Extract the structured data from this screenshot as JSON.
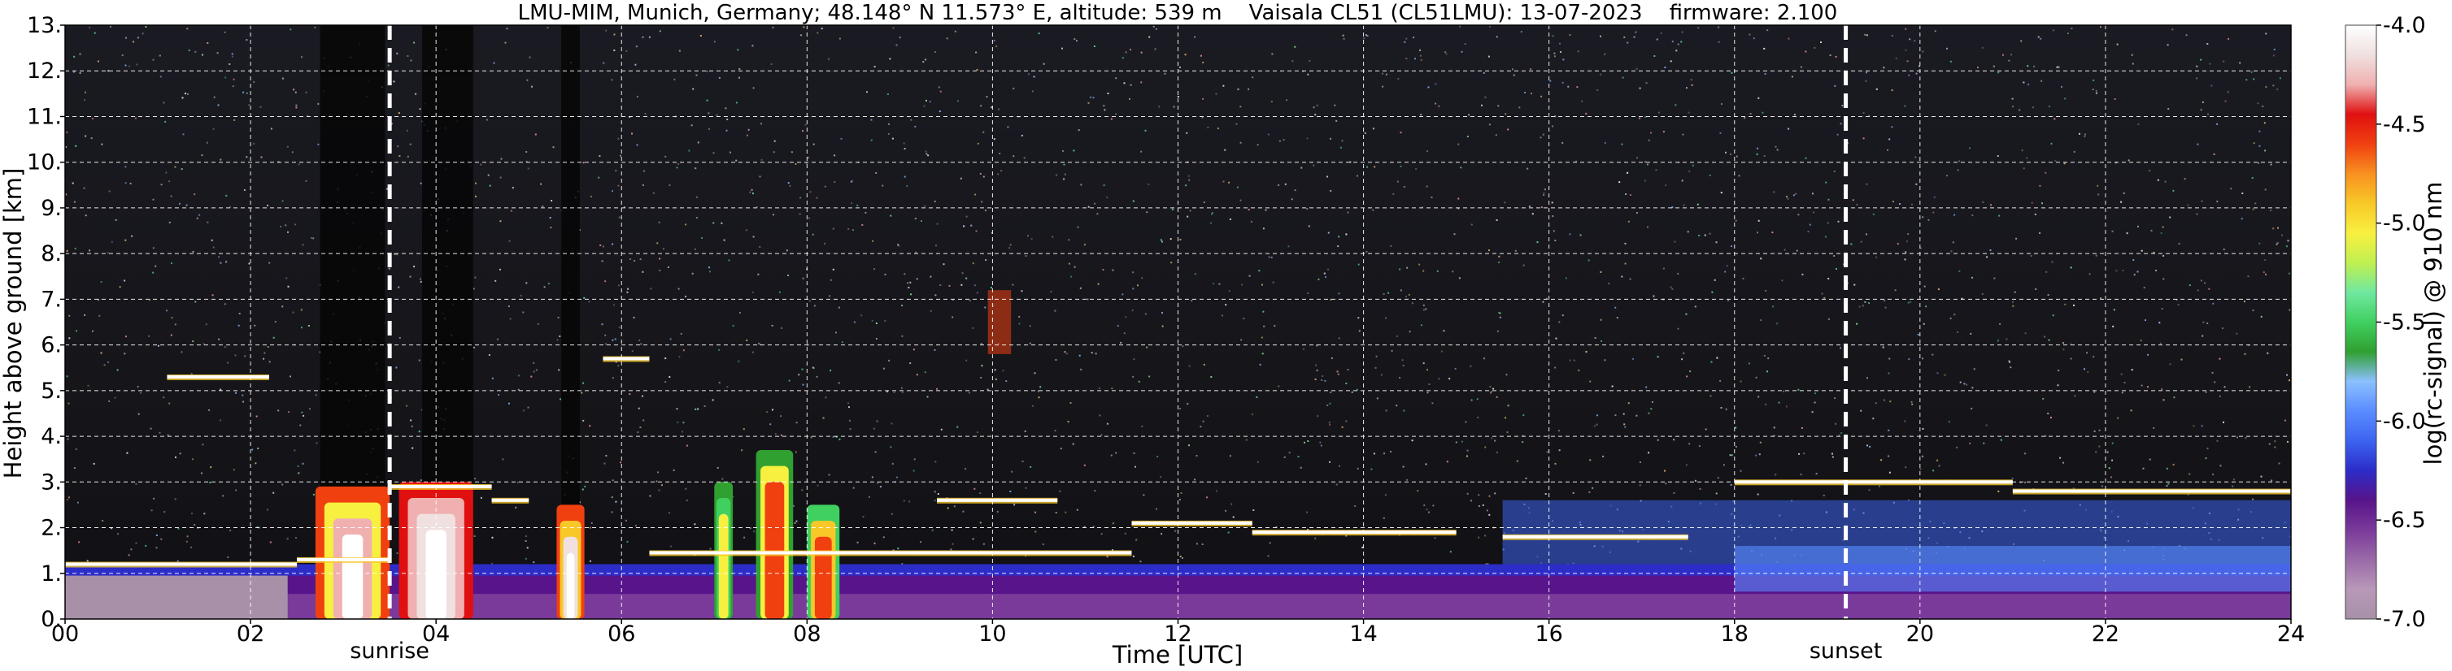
{
  "chart_data": {
    "type": "heatmap",
    "title": "LMU-MIM, Munich, Germany; 48.148° N 11.573° E, altitude: 539 m    Vaisala CL51 (CL51LMU): 13-07-2023    firmware: 2.100",
    "xlabel": "Time [UTC]",
    "ylabel": "Height above ground [km]",
    "xlim": [
      0,
      24
    ],
    "ylim": [
      0,
      13
    ],
    "x_ticks": [
      "00",
      "02",
      "04",
      "06",
      "08",
      "10",
      "12",
      "14",
      "16",
      "18",
      "20",
      "22",
      "24"
    ],
    "y_ticks": [
      "0.",
      "1.",
      "2.",
      "3.",
      "4.",
      "5.",
      "6.",
      "7.",
      "8.",
      "9.",
      "10.",
      "11.",
      "12.",
      "13."
    ],
    "grid": true,
    "colorbar": {
      "label": "log(rc-signal) @ 910 nm",
      "range": [
        -7.0,
        -4.0
      ],
      "ticks": [
        "-4.0",
        "-4.5",
        "-5.0",
        "-5.5",
        "-6.0",
        "-6.5",
        "-7.0"
      ],
      "colors": [
        "#a890a8",
        "#b898b8",
        "#9a6aa8",
        "#7a3a9a",
        "#58148a",
        "#2c2cc8",
        "#3c64f0",
        "#5a8cff",
        "#8cc0ff",
        "#30a030",
        "#40d060",
        "#70e8a0",
        "#c0f050",
        "#f8f040",
        "#f8c828",
        "#f89020",
        "#f04010",
        "#e01010",
        "#f0b0b0",
        "#f0e0e0",
        "#ffffff"
      ]
    },
    "events": [
      {
        "label": "sunrise",
        "time": 3.5
      },
      {
        "label": "sunset",
        "time": 19.2
      }
    ],
    "cloud_layers": [
      {
        "t0": 0.0,
        "t1": 2.5,
        "height": 1.2
      },
      {
        "t0": 1.1,
        "t1": 2.2,
        "height": 5.3
      },
      {
        "t0": 2.5,
        "t1": 3.5,
        "height": 1.3
      },
      {
        "t0": 3.5,
        "t1": 4.6,
        "height": 2.9
      },
      {
        "t0": 4.6,
        "t1": 5.0,
        "height": 2.6
      },
      {
        "t0": 5.8,
        "t1": 6.3,
        "height": 5.7
      },
      {
        "t0": 6.3,
        "t1": 11.5,
        "height": 1.45
      },
      {
        "t0": 9.4,
        "t1": 10.7,
        "height": 2.6
      },
      {
        "t0": 11.5,
        "t1": 12.8,
        "height": 2.1
      },
      {
        "t0": 12.8,
        "t1": 15.0,
        "height": 1.9
      },
      {
        "t0": 15.5,
        "t1": 17.5,
        "height": 1.8
      },
      {
        "t0": 18.0,
        "t1": 21.0,
        "height": 3.0
      },
      {
        "t0": 21.0,
        "t1": 24.0,
        "height": 2.8
      }
    ]
  }
}
